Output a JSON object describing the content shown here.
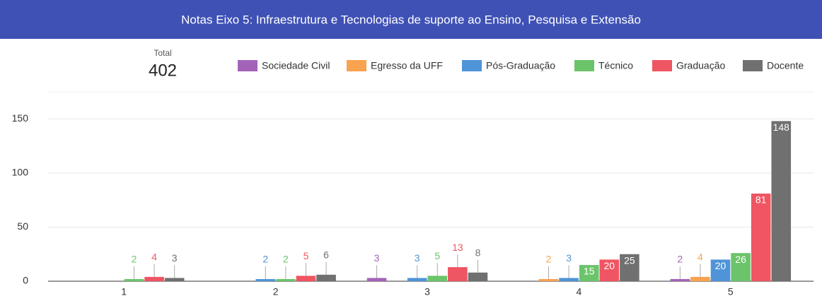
{
  "chart_data": {
    "type": "bar",
    "title": "Notas Eixo 5: Infraestrutura e Tecnologias de suporte ao Ensino, Pesquisa e Extensão",
    "total_label": "Total",
    "total": 402,
    "categories": [
      "1",
      "2",
      "3",
      "4",
      "5"
    ],
    "series": [
      {
        "name": "Sociedade Civil",
        "color": "#a463b8",
        "values": [
          null,
          null,
          3,
          null,
          2
        ]
      },
      {
        "name": "Egresso da UFF",
        "color": "#f9a24f",
        "values": [
          null,
          null,
          null,
          2,
          4
        ]
      },
      {
        "name": "Pós-Graduação",
        "color": "#4f94d8",
        "values": [
          null,
          2,
          3,
          3,
          20
        ]
      },
      {
        "name": "Técnico",
        "color": "#6cc46a",
        "values": [
          2,
          2,
          5,
          15,
          26
        ]
      },
      {
        "name": "Graduação",
        "color": "#ef5562",
        "values": [
          4,
          5,
          13,
          20,
          81
        ]
      },
      {
        "name": "Docente",
        "color": "#707070",
        "values": [
          3,
          6,
          8,
          25,
          148
        ]
      }
    ],
    "ylim": [
      0,
      175
    ],
    "yticks": [
      0,
      50,
      100,
      150
    ],
    "grid": true
  }
}
